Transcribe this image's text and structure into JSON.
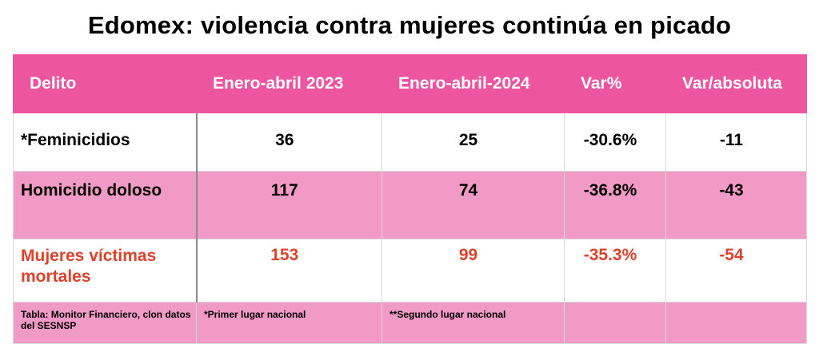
{
  "title": "Edomex: violencia contra mujeres continúa en picado",
  "chart_data": {
    "type": "table",
    "title": "Edomex: violencia contra mujeres continúa en picado",
    "columns": [
      "Delito",
      "Enero-abril 2023",
      "Enero-abril-2024",
      "Var%",
      "Var/absoluta"
    ],
    "rows": [
      [
        "*Feminicidios",
        "36",
        "25",
        "-30.6%",
        "-11"
      ],
      [
        "Homicidio doloso",
        "117",
        "74",
        "-36.8%",
        "-43"
      ],
      [
        "Mujeres víctimas mortales",
        "153",
        "99",
        "-35.3%",
        "-54"
      ]
    ],
    "footer": [
      "Tabla: Monitor Financiero, clon datos del SESNSP",
      "*Primer lugar nacional",
      "**Segundo lugar nacional",
      "",
      ""
    ]
  },
  "colors": {
    "header_bg": "#ee55a0",
    "band_bg": "#f29ac6",
    "highlight_text": "#e0412b"
  }
}
